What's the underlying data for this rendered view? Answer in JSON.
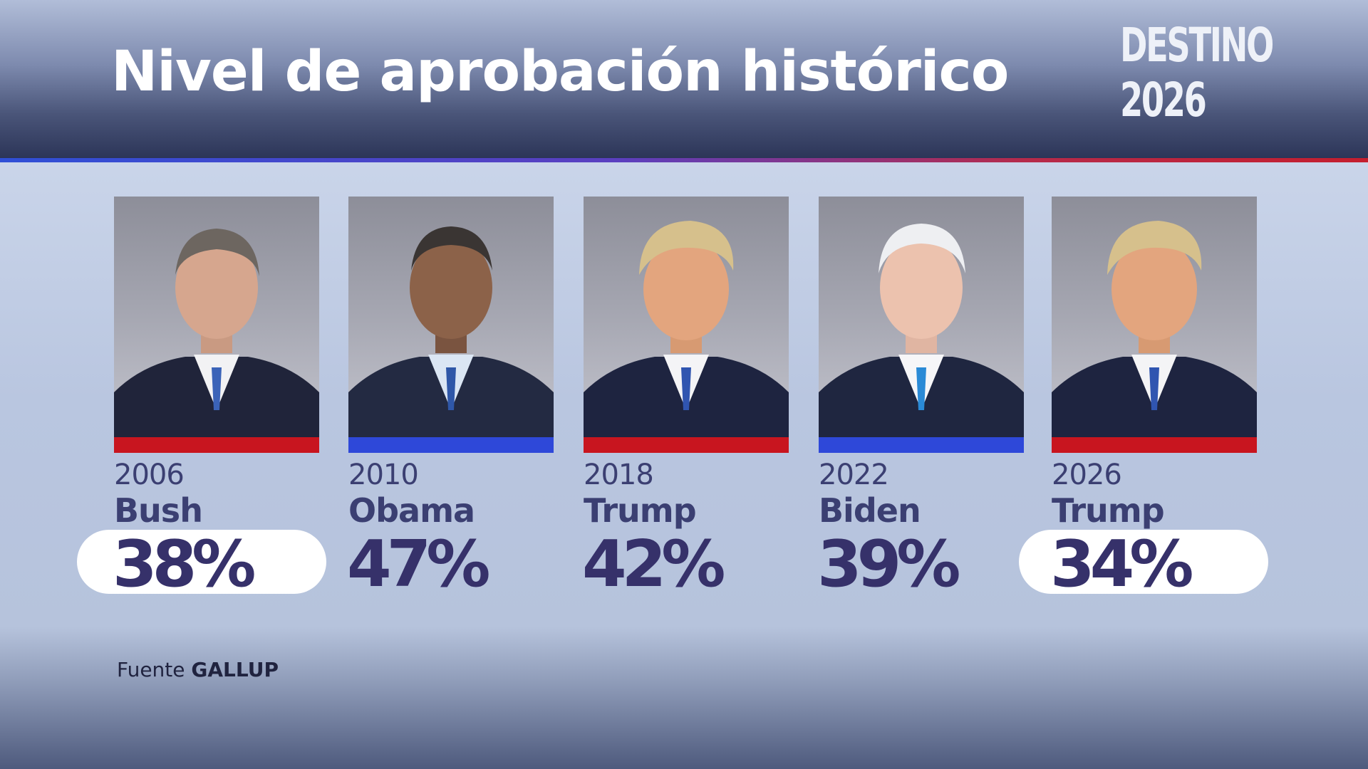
{
  "header": {
    "title": "Nivel de aprobación histórico",
    "brand": "DESTINO 2026"
  },
  "colors": {
    "republican": "#c8151f",
    "democrat": "#2e48d9",
    "text_dark": "#3b3f72",
    "percent_text": "#36316a",
    "highlight_pill": "#ffffff"
  },
  "presidents": [
    {
      "year": "2006",
      "name": "Bush",
      "approval": "38%",
      "party": "republican",
      "highlighted": true
    },
    {
      "year": "2010",
      "name": "Obama",
      "approval": "47%",
      "party": "democrat",
      "highlighted": false
    },
    {
      "year": "2018",
      "name": "Trump",
      "approval": "42%",
      "party": "republican",
      "highlighted": false
    },
    {
      "year": "2022",
      "name": "Biden",
      "approval": "39%",
      "party": "democrat",
      "highlighted": false
    },
    {
      "year": "2026",
      "name": "Trump",
      "approval": "34%",
      "party": "republican",
      "highlighted": true
    }
  ],
  "footer": {
    "source_label": "Fuente",
    "source_name": "GALLUP"
  }
}
